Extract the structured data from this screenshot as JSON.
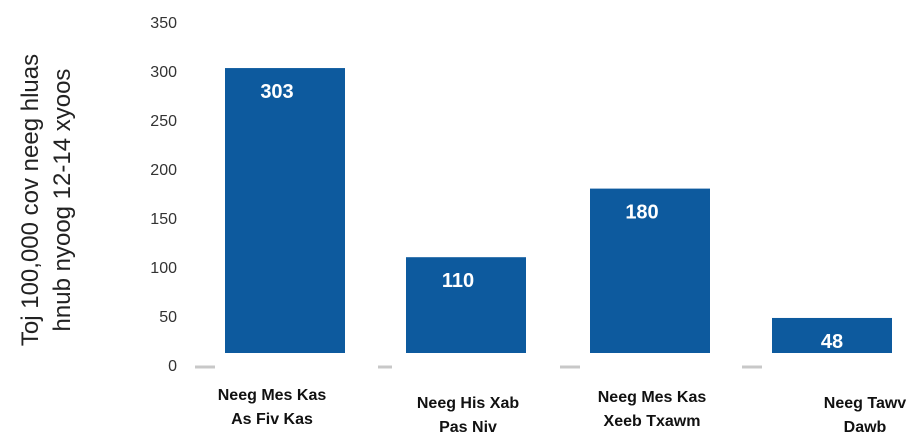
{
  "chart_data": {
    "type": "bar",
    "ylabel": [
      "Toj 100,000 cov neeg hluas",
      "hnub nyoog 12-14 xyoos"
    ],
    "categories": [
      [
        "Neeg Mes Kas",
        "As Fiv Kas"
      ],
      [
        "Neeg His Xab",
        "Pas Niv"
      ],
      [
        "Neeg Mes Kas",
        "Xeeb Txawm"
      ],
      [
        "Neeg Tawv",
        "Dawb"
      ]
    ],
    "values": [
      303,
      110,
      180,
      48
    ],
    "data_labels": [
      "303",
      "110",
      "180",
      "48"
    ],
    "yticks": [
      "0",
      "50",
      "100",
      "150",
      "200",
      "250",
      "300",
      "350"
    ],
    "ylim": [
      0,
      350
    ],
    "grid": false,
    "colors": {
      "bar": "#0d5a9e",
      "label": "#ffffff",
      "baseline": "#c8c8c8"
    }
  }
}
